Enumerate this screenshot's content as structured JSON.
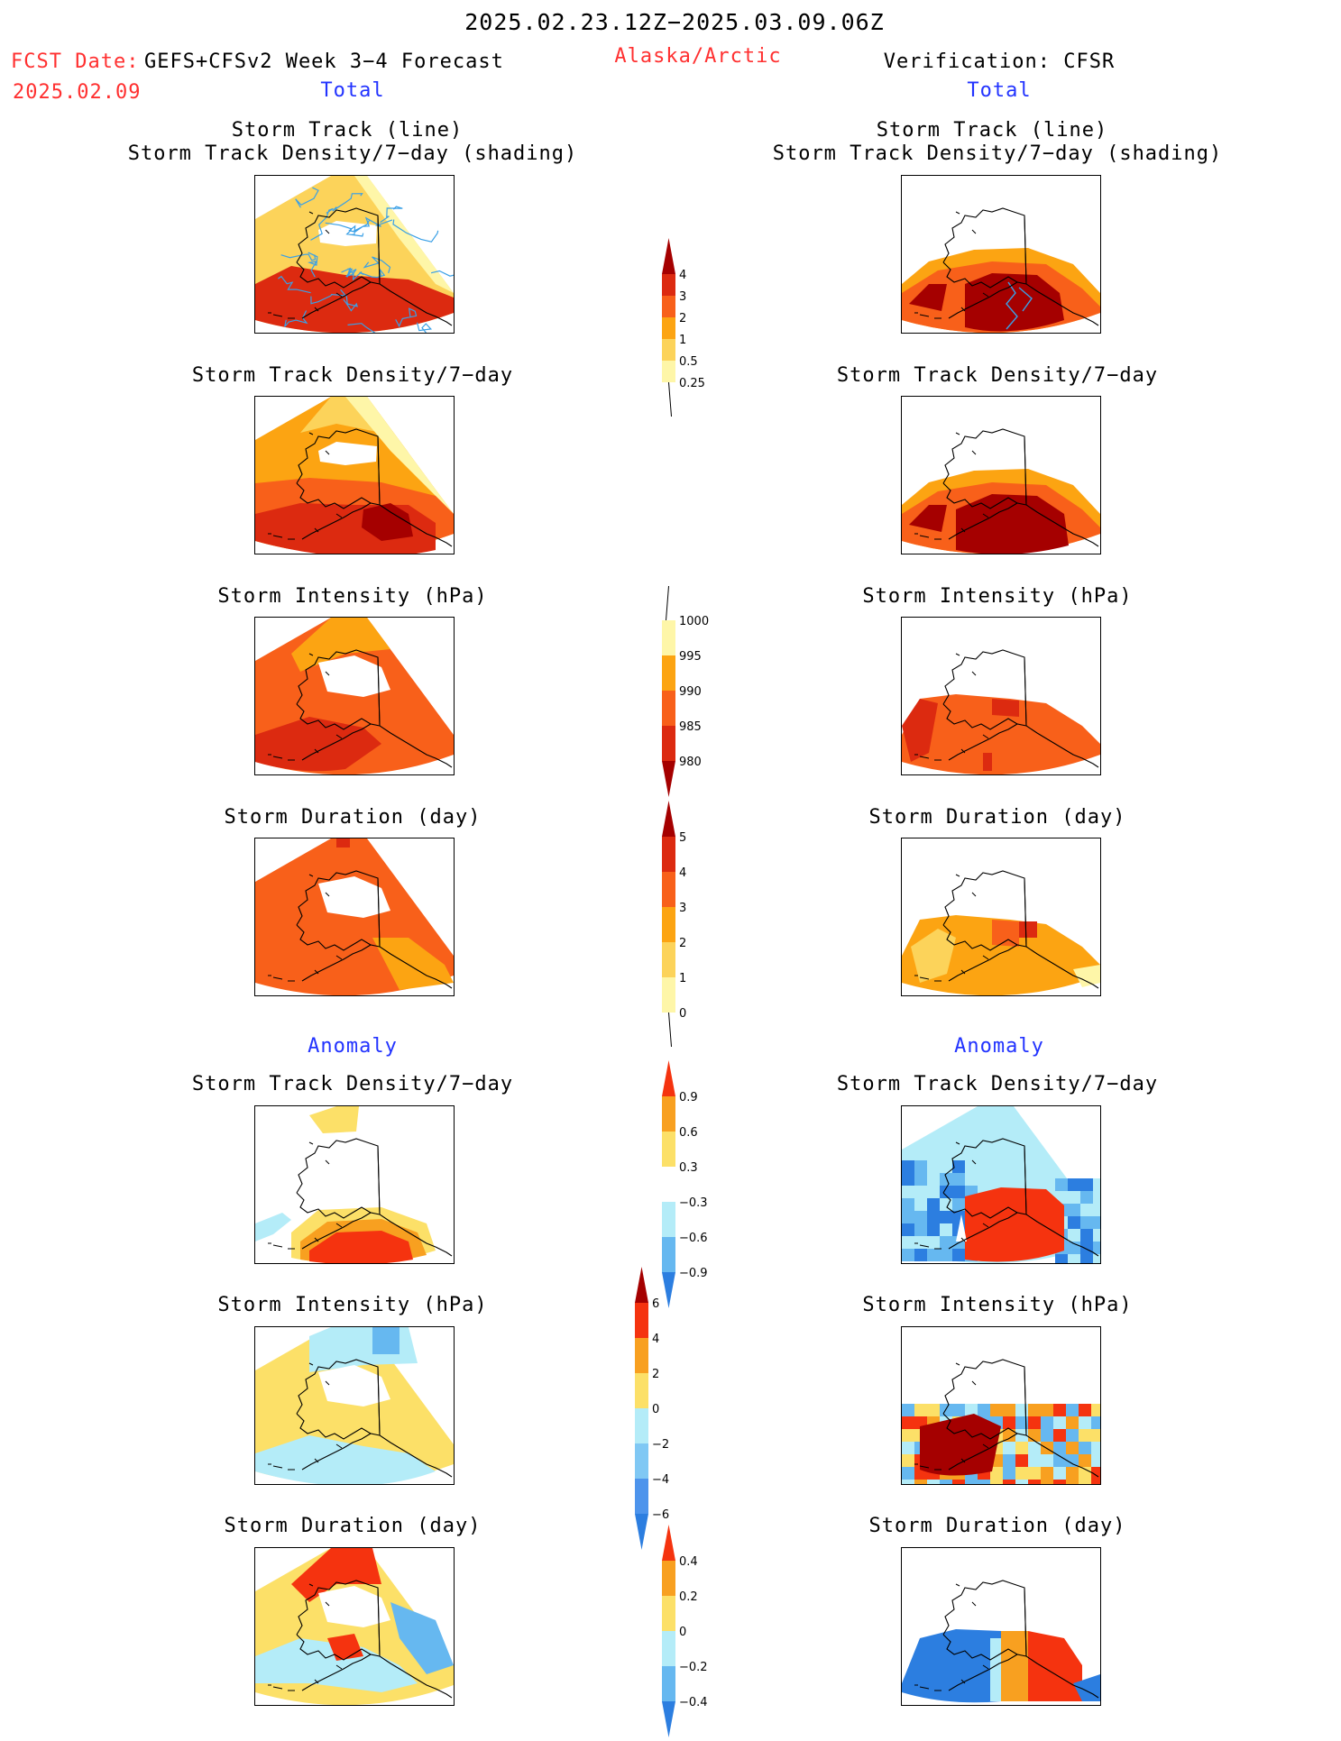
{
  "header": {
    "date_range": "2025.02.23.12Z−2025.03.09.06Z",
    "fcst_label": "FCST Date:",
    "fcst_model": "GEFS+CFSv2 Week 3−4 Forecast",
    "fcst_date": "2025.02.09",
    "region": "Alaska/Arctic",
    "verification": "Verification: CFSR"
  },
  "sections": {
    "total_left": "Total",
    "total_right": "Total",
    "anomaly_left": "Anomaly",
    "anomaly_right": "Anomaly"
  },
  "panel_titles": {
    "track_line": "Storm Track (line)",
    "track_shading": "Storm Track Density/7−day (shading)",
    "density": "Storm Track Density/7−day",
    "intensity": "Storm Intensity (hPa)",
    "duration": "Storm Duration (day)"
  },
  "colorbars": {
    "density_total": {
      "labels": [
        "4",
        "3",
        "2",
        "1",
        "0.5",
        "0.25"
      ],
      "colors": [
        "#a50000",
        "#dc2a10",
        "#f8601a",
        "#fca412",
        "#fcd35a",
        "#fef6a8"
      ]
    },
    "intensity_total": {
      "labels": [
        "1000",
        "995",
        "990",
        "985",
        "980"
      ],
      "colors": [
        "#fef6a8",
        "#fca412",
        "#f8601a",
        "#dc2a10",
        "#a50000"
      ]
    },
    "duration_total": {
      "labels": [
        "5",
        "4",
        "3",
        "2",
        "1",
        "0"
      ],
      "colors": [
        "#a50000",
        "#dc2a10",
        "#f8601a",
        "#fca412",
        "#fcd35a",
        "#fef6a8"
      ]
    },
    "density_anom": {
      "labels": [
        "0.9",
        "0.6",
        "0.3",
        "−0.3",
        "−0.6",
        "−0.9"
      ],
      "colors": [
        "#f5330f",
        "#f8a020",
        "#fce068",
        "#ffffff",
        "#b4ecf8",
        "#66b8f0",
        "#2c7ee0"
      ]
    },
    "intensity_anom": {
      "labels": [
        "6",
        "4",
        "2",
        "0",
        "−2",
        "−4",
        "−6"
      ],
      "colors": [
        "#a50000",
        "#f5330f",
        "#f8a020",
        "#fce068",
        "#b4ecf8",
        "#80c8f4",
        "#4d94ec",
        "#2c7ee0"
      ]
    },
    "duration_anom": {
      "labels": [
        "0.4",
        "0.2",
        "0",
        "−0.2",
        "−0.4"
      ],
      "colors": [
        "#f5330f",
        "#f8a020",
        "#fce068",
        "#b4ecf8",
        "#66b8f0",
        "#2c7ee0"
      ]
    }
  },
  "map_colors": {
    "dark_red": "#a50000",
    "red": "#dc2a10",
    "red_orange": "#f8601a",
    "orange": "#fca412",
    "light_orange": "#fcd35a",
    "pale_yellow": "#fef6a8",
    "anom_yellow": "#fce068",
    "anom_orange": "#f8a020",
    "anom_red": "#f5330f",
    "light_blue": "#b4ecf8",
    "mid_blue": "#66b8f0",
    "dark_blue": "#2c7ee0",
    "track_line": "#3aa0e6",
    "coastline": "#000000"
  }
}
